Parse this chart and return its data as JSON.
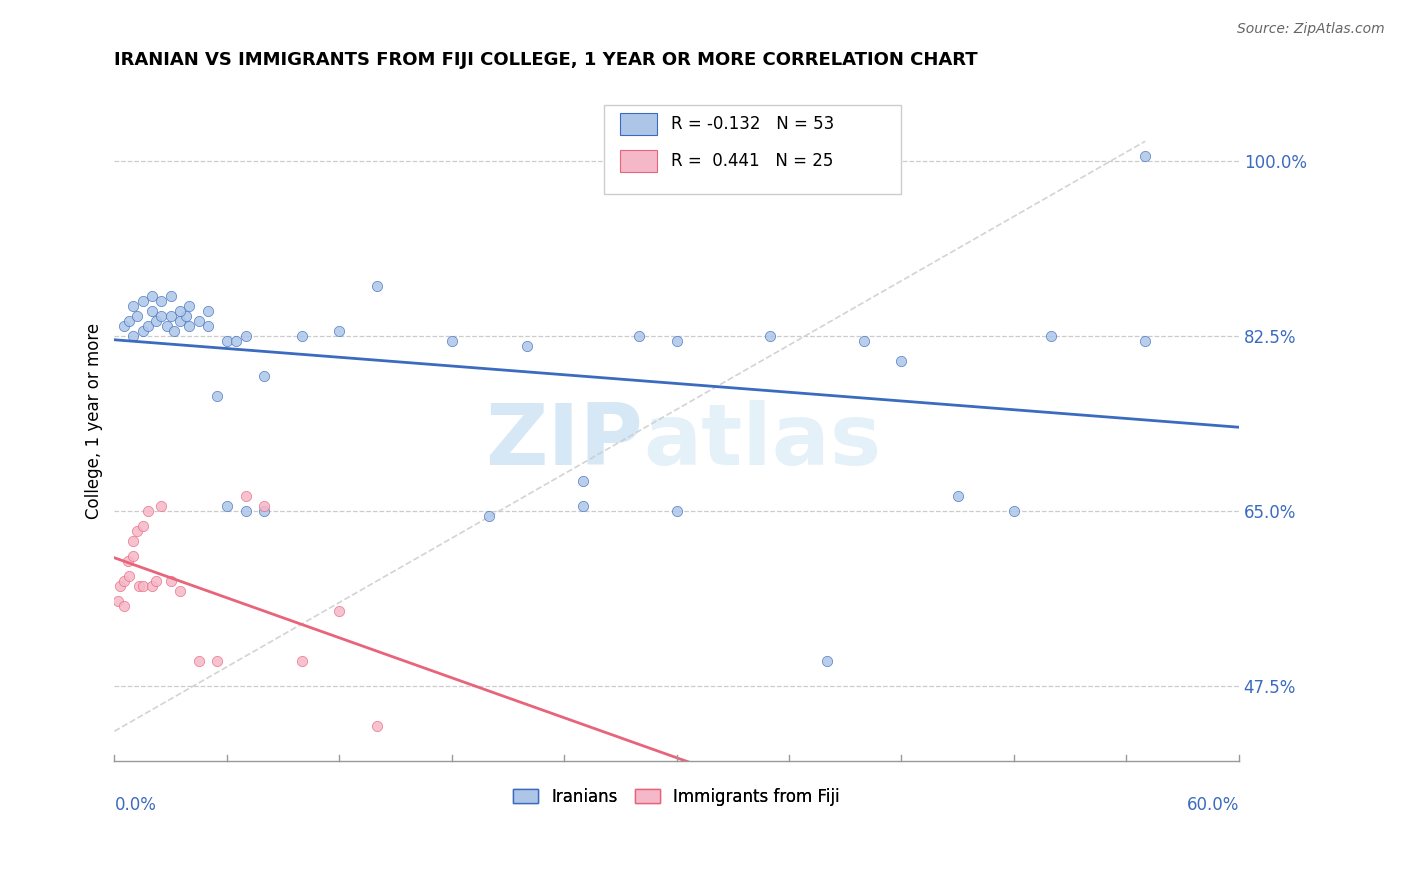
{
  "title": "IRANIAN VS IMMIGRANTS FROM FIJI COLLEGE, 1 YEAR OR MORE CORRELATION CHART",
  "source": "Source: ZipAtlas.com",
  "ylabel_label": "College, 1 year or more",
  "legend_label1": "Iranians",
  "legend_label2": "Immigrants from Fiji",
  "r1": -0.132,
  "n1": 53,
  "r2": 0.441,
  "n2": 25,
  "color_blue": "#adc6e8",
  "color_pink": "#f5b8c8",
  "line_blue": "#3b6bbf",
  "line_pink": "#e8647a",
  "x_min": 0.0,
  "x_max": 60.0,
  "y_min": 40.0,
  "y_max": 108.0,
  "yticks": [
    47.5,
    65.0,
    82.5,
    100.0
  ],
  "iranians_x": [
    0.5,
    0.8,
    1.0,
    1.2,
    1.5,
    1.8,
    2.0,
    2.2,
    2.5,
    2.8,
    3.0,
    3.2,
    3.5,
    3.8,
    4.0,
    4.5,
    5.0,
    5.5,
    6.0,
    6.5,
    7.0,
    8.0,
    10.0,
    12.0,
    14.0,
    18.0,
    20.0,
    22.0,
    25.0,
    28.0,
    30.0,
    35.0,
    38.0,
    40.0,
    42.0,
    45.0,
    48.0,
    50.0,
    55.0,
    1.0,
    1.5,
    2.0,
    2.5,
    3.0,
    3.5,
    4.0,
    5.0,
    6.0,
    7.0,
    8.0,
    25.0,
    30.0,
    55.0
  ],
  "iranians_y": [
    83.5,
    84.0,
    82.5,
    84.5,
    83.0,
    83.5,
    85.0,
    84.0,
    84.5,
    83.5,
    84.5,
    83.0,
    84.0,
    84.5,
    83.5,
    84.0,
    83.5,
    76.5,
    82.0,
    82.0,
    82.5,
    78.5,
    82.5,
    83.0,
    87.5,
    82.0,
    64.5,
    81.5,
    65.5,
    82.5,
    82.0,
    82.5,
    50.0,
    82.0,
    80.0,
    66.5,
    65.0,
    82.5,
    100.5,
    85.5,
    86.0,
    86.5,
    86.0,
    86.5,
    85.0,
    85.5,
    85.0,
    65.5,
    65.0,
    65.0,
    68.0,
    65.0,
    82.0
  ],
  "fiji_x": [
    0.2,
    0.3,
    0.5,
    0.5,
    0.7,
    0.8,
    1.0,
    1.0,
    1.2,
    1.3,
    1.5,
    1.5,
    1.8,
    2.0,
    2.2,
    2.5,
    3.0,
    3.5,
    4.5,
    5.5,
    7.0,
    8.0,
    10.0,
    12.0,
    14.0
  ],
  "fiji_y": [
    56.0,
    57.5,
    55.5,
    58.0,
    60.0,
    58.5,
    60.5,
    62.0,
    63.0,
    57.5,
    57.5,
    63.5,
    65.0,
    57.5,
    58.0,
    65.5,
    58.0,
    57.0,
    50.0,
    50.0,
    66.5,
    65.5,
    50.0,
    55.0,
    43.5
  ]
}
